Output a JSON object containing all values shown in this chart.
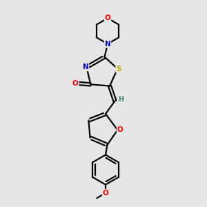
{
  "background_color": "#e6e6e6",
  "bond_color": "#000000",
  "atom_colors": {
    "N": "#0000cc",
    "O": "#ff0000",
    "S": "#bbaa00",
    "H": "#448888",
    "C": "#000000"
  },
  "figsize": [
    3.0,
    3.0
  ],
  "dpi": 100,
  "xlim": [
    0,
    10
  ],
  "ylim": [
    0,
    10
  ]
}
